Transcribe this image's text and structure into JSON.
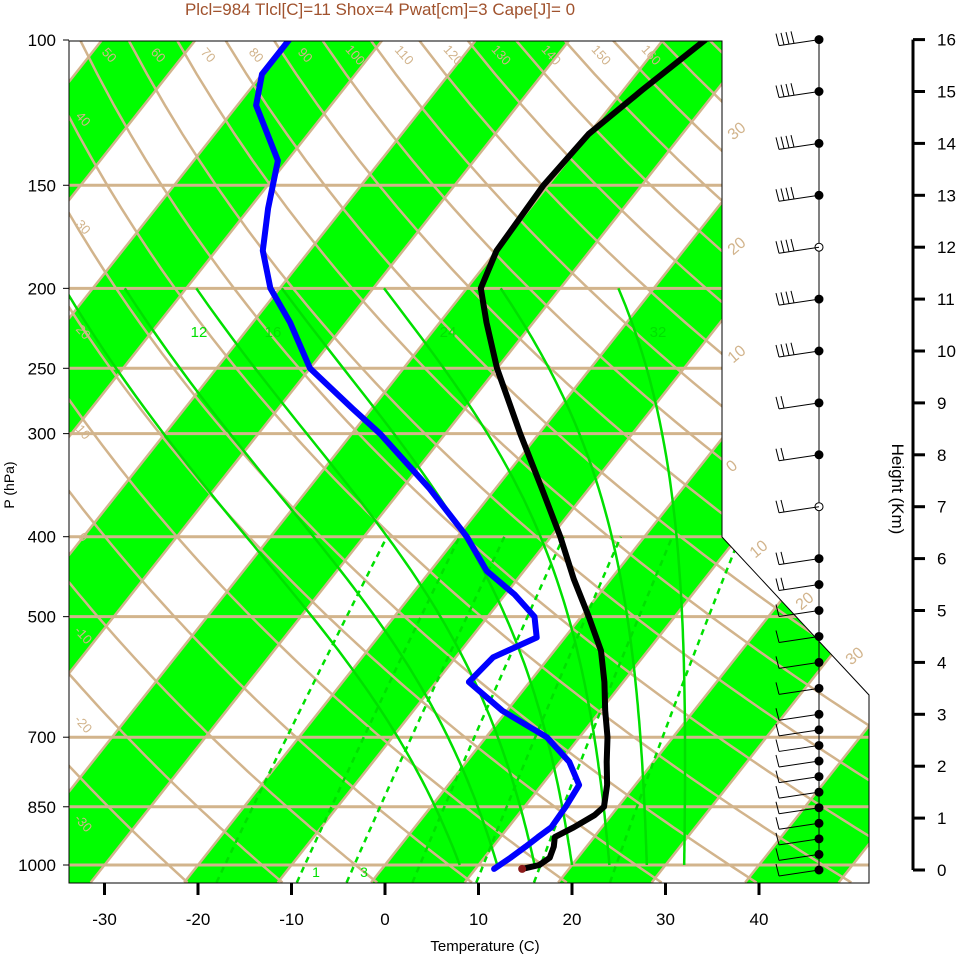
{
  "chart_data": {
    "type": "line",
    "title": "Plcl=984 Tlcl[C]=11 Shox=4 Pwat[cm]=3 Cape[J]= 0",
    "xlabel": "Temperature (C)",
    "ylabel": "P (hPa)",
    "y2label": "Height (Km)",
    "xlim": [
      -35,
      50
    ],
    "ylim": [
      1050,
      100
    ],
    "pressure_ticks": [
      100,
      150,
      200,
      250,
      300,
      400,
      500,
      700,
      850,
      1000
    ],
    "temperature_ticks": [
      -30,
      -20,
      -10,
      0,
      10,
      20,
      30,
      40
    ],
    "height_ticks": [
      0,
      1,
      2,
      3,
      4,
      5,
      6,
      7,
      8,
      9,
      10,
      11,
      12,
      13,
      14,
      15,
      16
    ],
    "theta_labels": [
      "50",
      "60",
      "70",
      "80",
      "90",
      "100",
      "110",
      "120",
      "130",
      "140",
      "150",
      "160"
    ],
    "isotherm_labels_left": [
      "40",
      "30",
      "20",
      "10",
      "0",
      "-10",
      "-20",
      "-30"
    ],
    "isotherm_labels_right": [
      "30",
      "20",
      "10",
      "0",
      "10",
      "20",
      "30"
    ],
    "mixing_ratio_labels": [
      "12",
      "16",
      "24",
      "32"
    ],
    "mixing_ratio_bottom_labels": [
      "1",
      "3"
    ],
    "series": [
      {
        "name": "Temperature",
        "color": "#000000",
        "points": [
          {
            "p": 1011,
            "t": 15.0
          },
          {
            "p": 1000,
            "t": 16.5
          },
          {
            "p": 980,
            "t": 17.0
          },
          {
            "p": 950,
            "t": 16.5
          },
          {
            "p": 925,
            "t": 15.8
          },
          {
            "p": 900,
            "t": 17.0
          },
          {
            "p": 870,
            "t": 18.2
          },
          {
            "p": 850,
            "t": 18.5
          },
          {
            "p": 800,
            "t": 17.0
          },
          {
            "p": 750,
            "t": 15.0
          },
          {
            "p": 700,
            "t": 13.0
          },
          {
            "p": 650,
            "t": 10.5
          },
          {
            "p": 600,
            "t": 8.0
          },
          {
            "p": 550,
            "t": 5.0
          },
          {
            "p": 500,
            "t": 0.8
          },
          {
            "p": 450,
            "t": -4.0
          },
          {
            "p": 400,
            "t": -9.0
          },
          {
            "p": 350,
            "t": -15.0
          },
          {
            "p": 300,
            "t": -22.0
          },
          {
            "p": 250,
            "t": -30.0
          },
          {
            "p": 220,
            "t": -35.0
          },
          {
            "p": 200,
            "t": -38.5
          },
          {
            "p": 180,
            "t": -40.0
          },
          {
            "p": 150,
            "t": -40.5
          },
          {
            "p": 130,
            "t": -40.0
          },
          {
            "p": 115,
            "t": -38.0
          },
          {
            "p": 100,
            "t": -35.5
          }
        ]
      },
      {
        "name": "Dewpoint",
        "color": "#0000ff",
        "points": [
          {
            "p": 1011,
            "t": 12.0
          },
          {
            "p": 980,
            "t": 12.8
          },
          {
            "p": 950,
            "t": 13.5
          },
          {
            "p": 925,
            "t": 14.0
          },
          {
            "p": 900,
            "t": 14.6
          },
          {
            "p": 850,
            "t": 14.4
          },
          {
            "p": 800,
            "t": 14.0
          },
          {
            "p": 750,
            "t": 11.0
          },
          {
            "p": 700,
            "t": 6.5
          },
          {
            "p": 650,
            "t": -0.5
          },
          {
            "p": 600,
            "t": -6.5
          },
          {
            "p": 560,
            "t": -6.0
          },
          {
            "p": 530,
            "t": -3.0
          },
          {
            "p": 500,
            "t": -5.0
          },
          {
            "p": 470,
            "t": -9.0
          },
          {
            "p": 440,
            "t": -14.0
          },
          {
            "p": 400,
            "t": -19.0
          },
          {
            "p": 350,
            "t": -27.0
          },
          {
            "p": 300,
            "t": -37.0
          },
          {
            "p": 280,
            "t": -42.0
          },
          {
            "p": 250,
            "t": -50.0
          },
          {
            "p": 220,
            "t": -56.0
          },
          {
            "p": 200,
            "t": -61.0
          },
          {
            "p": 180,
            "t": -65.0
          },
          {
            "p": 160,
            "t": -68.0
          },
          {
            "p": 140,
            "t": -71.0
          },
          {
            "p": 120,
            "t": -78.0
          },
          {
            "p": 110,
            "t": -80.0
          },
          {
            "p": 100,
            "t": -80.0
          }
        ]
      }
    ],
    "surface_parcel": {
      "p": 1011,
      "t": 15.0,
      "color": "#8b1a1a"
    },
    "wind_barbs_heights_km": [
      0,
      0.3,
      0.6,
      0.9,
      1.2,
      1.5,
      1.8,
      2.1,
      2.4,
      2.7,
      3.0,
      3.5,
      4.0,
      4.5,
      5.0,
      5.5,
      6.0,
      7.0,
      8.0,
      9.0,
      10.0,
      11.0,
      12.0,
      13.0,
      14.0,
      15.0,
      16.0
    ],
    "colors": {
      "green_band": "#00ff00",
      "thin_lines": "#d2b48c",
      "title": "#a0522d",
      "mixing_ratio": "#00e000"
    }
  }
}
